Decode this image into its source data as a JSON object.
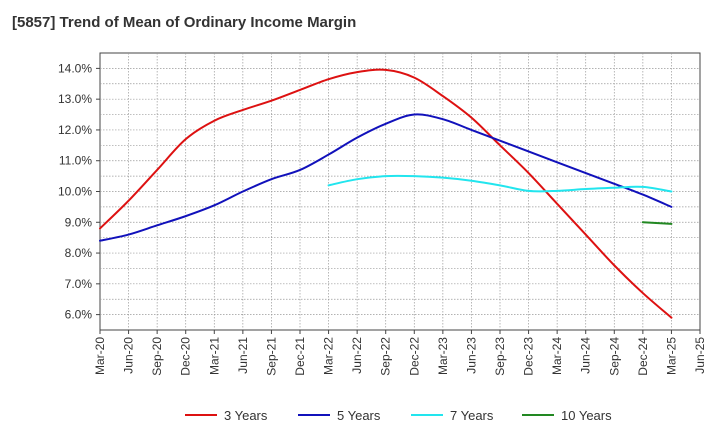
{
  "chart_data": {
    "type": "line",
    "title": "[5857]  Trend of Mean of Ordinary Income Margin",
    "xlabel": "",
    "ylabel": "",
    "ylim": [
      5.5,
      14.5
    ],
    "yticks": [
      "14.0%",
      "13.0%",
      "12.0%",
      "11.0%",
      "10.0%",
      "9.0%",
      "8.0%",
      "7.0%",
      "6.0%"
    ],
    "xticks": [
      "Mar-20",
      "Jun-20",
      "Sep-20",
      "Dec-20",
      "Mar-21",
      "Jun-21",
      "Sep-21",
      "Dec-21",
      "Mar-22",
      "Jun-22",
      "Sep-22",
      "Dec-22",
      "Mar-23",
      "Jun-23",
      "Sep-23",
      "Dec-23",
      "Mar-24",
      "Jun-24",
      "Sep-24",
      "Dec-24",
      "Mar-25",
      "Jun-25"
    ],
    "grid": true,
    "legend_position": "bottom",
    "series": [
      {
        "name": "3 Years",
        "color": "#dd1111",
        "x": [
          "Mar-20",
          "Jun-20",
          "Sep-20",
          "Dec-20",
          "Mar-21",
          "Jun-21",
          "Sep-21",
          "Dec-21",
          "Mar-22",
          "Jun-22",
          "Sep-22",
          "Dec-22",
          "Mar-23",
          "Jun-23",
          "Sep-23",
          "Dec-23",
          "Mar-24",
          "Jun-24",
          "Sep-24",
          "Dec-24",
          "Mar-25"
        ],
        "values": [
          8.8,
          9.7,
          10.7,
          11.7,
          12.3,
          12.65,
          12.95,
          13.3,
          13.65,
          13.88,
          13.95,
          13.7,
          13.1,
          12.4,
          11.5,
          10.6,
          9.6,
          8.6,
          7.6,
          6.7,
          5.9
        ]
      },
      {
        "name": "5 Years",
        "color": "#1111bb",
        "x": [
          "Mar-20",
          "Jun-20",
          "Sep-20",
          "Dec-20",
          "Mar-21",
          "Jun-21",
          "Sep-21",
          "Dec-21",
          "Mar-22",
          "Jun-22",
          "Sep-22",
          "Dec-22",
          "Mar-23",
          "Jun-23",
          "Sep-23",
          "Dec-23",
          "Mar-24",
          "Jun-24",
          "Sep-24",
          "Dec-24",
          "Mar-25"
        ],
        "values": [
          8.4,
          8.6,
          8.9,
          9.2,
          9.55,
          10.0,
          10.4,
          10.7,
          11.2,
          11.75,
          12.2,
          12.5,
          12.35,
          12.0,
          11.65,
          11.3,
          10.95,
          10.6,
          10.25,
          9.9,
          9.5
        ]
      },
      {
        "name": "7 Years",
        "color": "#22e5ee",
        "x": [
          "Mar-22",
          "Jun-22",
          "Sep-22",
          "Dec-22",
          "Mar-23",
          "Jun-23",
          "Sep-23",
          "Dec-23",
          "Mar-24",
          "Jun-24",
          "Sep-24",
          "Dec-24",
          "Mar-25"
        ],
        "values": [
          10.2,
          10.4,
          10.5,
          10.5,
          10.45,
          10.35,
          10.2,
          10.02,
          10.02,
          10.08,
          10.12,
          10.15,
          10.0
        ]
      },
      {
        "name": "10 Years",
        "color": "#228822",
        "x": [
          "Dec-24",
          "Mar-25"
        ],
        "values": [
          9.0,
          8.95
        ]
      }
    ]
  }
}
